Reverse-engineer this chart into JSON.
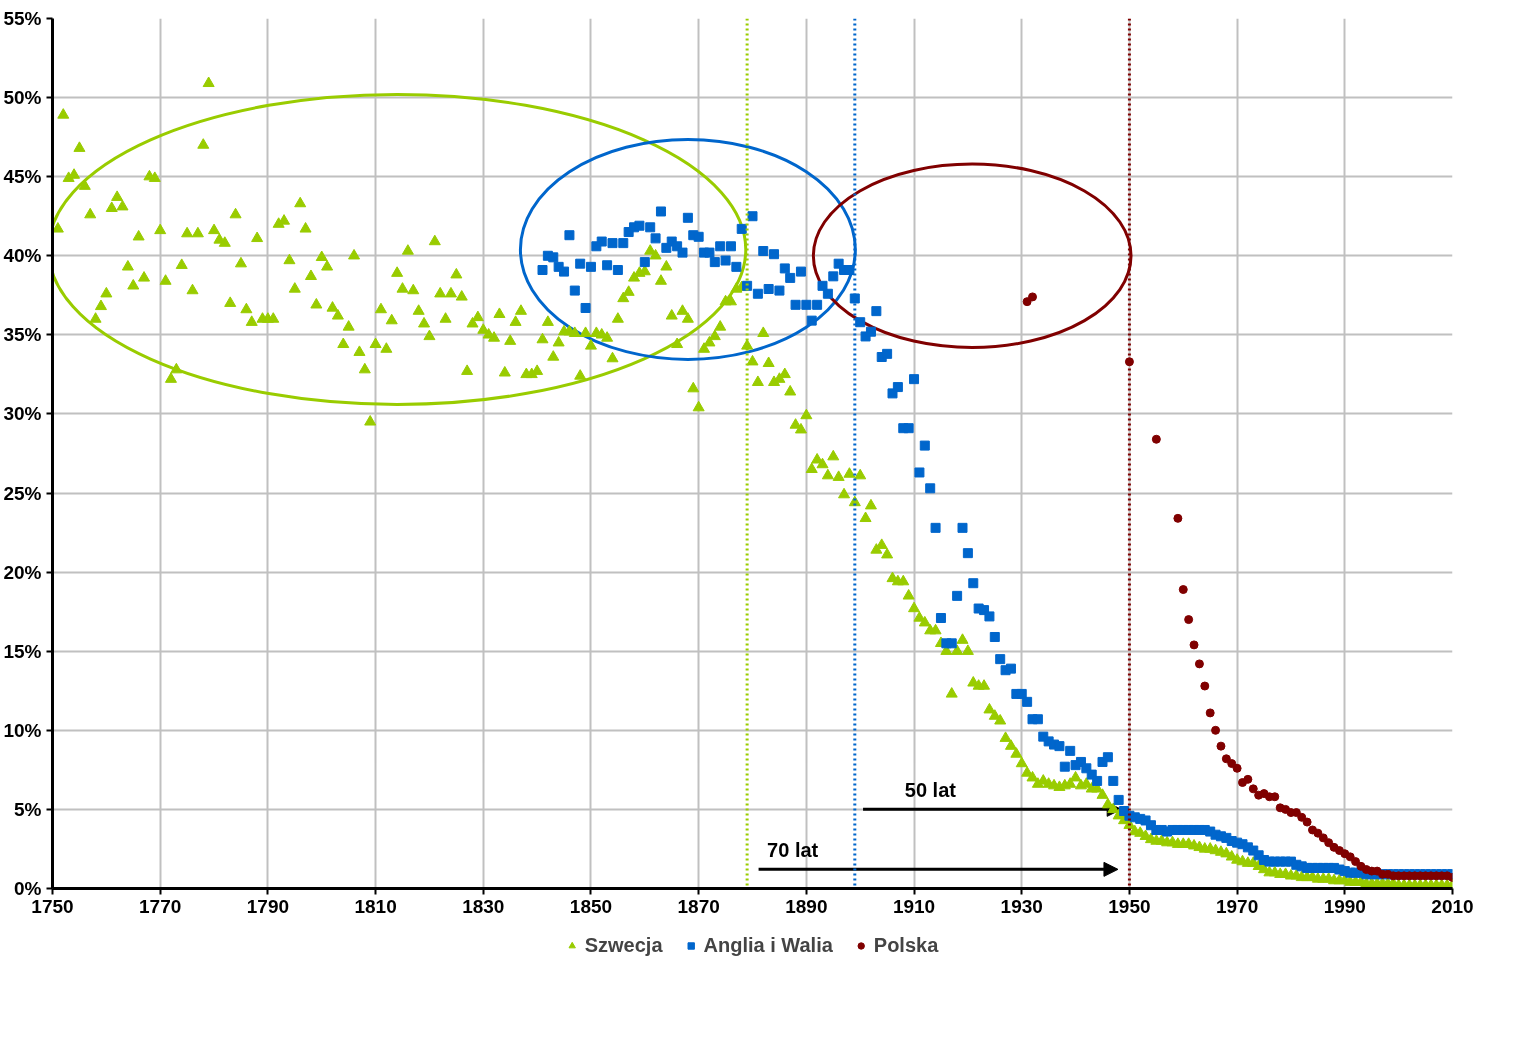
{
  "chart_data": {
    "type": "scatter",
    "xlim": [
      1750,
      2010
    ],
    "ylim": [
      0,
      55
    ],
    "xticks": [
      1750,
      1770,
      1790,
      1810,
      1830,
      1850,
      1870,
      1890,
      1910,
      1930,
      1950,
      1970,
      1990,
      2010
    ],
    "yticks": [
      {
        "value": 0,
        "label": "0%"
      },
      {
        "value": 5,
        "label": "5%"
      },
      {
        "value": 10,
        "label": "10%"
      },
      {
        "value": 15,
        "label": "15%"
      },
      {
        "value": 20,
        "label": "20%"
      },
      {
        "value": 25,
        "label": "25%"
      },
      {
        "value": 30,
        "label": "30%"
      },
      {
        "value": 35,
        "label": "35%"
      },
      {
        "value": 40,
        "label": "40%"
      },
      {
        "value": 45,
        "label": "45%"
      },
      {
        "value": 50,
        "label": "50%"
      },
      {
        "value": 55,
        "label": "55%"
      }
    ],
    "grid": true,
    "legend": "bottom",
    "series": [
      {
        "name": "Szwecja",
        "color": "#99cc00",
        "marker": "triangle",
        "x": [
          1751,
          1752,
          1753,
          1754,
          1755,
          1756,
          1757,
          1758,
          1759,
          1760,
          1761,
          1762,
          1763,
          1764,
          1765,
          1766,
          1767,
          1768,
          1769,
          1770,
          1771,
          1772,
          1773,
          1774,
          1775,
          1776,
          1777,
          1778,
          1779,
          1780,
          1781,
          1782,
          1783,
          1784,
          1785,
          1786,
          1787,
          1788,
          1789,
          1790,
          1791,
          1792,
          1793,
          1794,
          1795,
          1796,
          1797,
          1798,
          1799,
          1800,
          1801,
          1802,
          1803,
          1804,
          1805,
          1806,
          1807,
          1808,
          1809,
          1810,
          1811,
          1812,
          1813,
          1814,
          1815,
          1816,
          1817,
          1818,
          1819,
          1820,
          1821,
          1822,
          1823,
          1824,
          1825,
          1826,
          1827,
          1828,
          1829,
          1830,
          1831,
          1832,
          1833,
          1834,
          1835,
          1836,
          1837,
          1838,
          1839,
          1840,
          1841,
          1842,
          1843,
          1844,
          1845,
          1846,
          1847,
          1848,
          1849,
          1850,
          1851,
          1852,
          1853,
          1854,
          1855,
          1856,
          1857,
          1858,
          1859,
          1860,
          1861,
          1862,
          1863,
          1864,
          1865,
          1866,
          1867,
          1868,
          1869,
          1870,
          1871,
          1872,
          1873,
          1874,
          1875,
          1876,
          1877,
          1878,
          1879,
          1880,
          1881,
          1882,
          1883,
          1884,
          1885,
          1886,
          1887,
          1888,
          1889,
          1890,
          1891,
          1892,
          1893,
          1894,
          1895,
          1896,
          1897,
          1898,
          1899,
          1900,
          1901,
          1902,
          1903,
          1904,
          1905,
          1906,
          1907,
          1908,
          1909,
          1910,
          1911,
          1912,
          1913,
          1914,
          1915,
          1916,
          1917,
          1918,
          1919,
          1920,
          1921,
          1922,
          1923,
          1924,
          1925,
          1926,
          1927,
          1928,
          1929,
          1930,
          1931,
          1932,
          1933,
          1934,
          1935,
          1936,
          1937,
          1938,
          1939,
          1940,
          1941,
          1942,
          1943,
          1944,
          1945,
          1946,
          1947,
          1948,
          1949,
          1950,
          1951,
          1952,
          1953,
          1954,
          1955,
          1956,
          1957,
          1958,
          1959,
          1960,
          1961,
          1962,
          1963,
          1964,
          1965,
          1966,
          1967,
          1968,
          1969,
          1970,
          1971,
          1972,
          1973,
          1974,
          1975,
          1976,
          1977,
          1978,
          1979,
          1980,
          1981,
          1982,
          1983,
          1984,
          1985,
          1986,
          1987,
          1988,
          1989,
          1990,
          1991,
          1992,
          1993,
          1994,
          1995,
          1996,
          1997,
          1998,
          1999,
          2000,
          2001,
          2002,
          2003,
          2004,
          2005,
          2006,
          2007,
          2008,
          2009,
          2010
        ],
        "values": [
          41.7,
          48.9,
          44.9,
          45.1,
          46.8,
          44.4,
          42.6,
          36.0,
          36.8,
          37.6,
          43.0,
          43.7,
          43.1,
          39.3,
          38.1,
          41.2,
          38.6,
          45.0,
          44.9,
          41.6,
          38.4,
          32.2,
          32.8,
          39.4,
          41.4,
          37.8,
          41.4,
          47.0,
          50.9,
          41.6,
          41.0,
          40.8,
          37.0,
          42.6,
          39.5,
          36.6,
          35.8,
          41.1,
          36.0,
          36.0,
          36.0,
          42.0,
          42.2,
          39.7,
          37.9,
          43.3,
          41.7,
          38.7,
          36.9,
          39.9,
          39.3,
          36.7,
          36.2,
          34.4,
          35.5,
          40.0,
          33.9,
          32.8,
          29.5,
          34.4,
          36.6,
          34.1,
          35.9,
          38.9,
          37.9,
          40.3,
          37.8,
          36.5,
          35.7,
          34.9,
          40.9,
          37.6,
          36.0,
          37.6,
          38.8,
          37.4,
          32.7,
          35.7,
          36.1,
          35.3,
          35.0,
          34.8,
          36.3,
          32.6,
          34.6,
          35.8,
          36.5,
          32.5,
          32.5,
          32.7,
          34.7,
          35.8,
          33.6,
          34.5,
          35.2,
          35.2,
          35.1,
          32.4,
          35.1,
          34.3,
          35.1,
          35.0,
          34.8,
          33.5,
          36.0,
          37.3,
          37.7,
          38.6,
          38.9,
          39.0,
          40.3,
          40.0,
          38.4,
          39.3,
          36.2,
          34.4,
          36.5,
          36.0,
          31.6,
          30.4,
          34.1,
          34.5,
          34.9,
          35.5,
          37.1,
          37.1,
          37.9,
          38.0,
          34.3,
          33.3,
          32.0,
          35.1,
          33.2,
          32.0,
          32.2,
          32.5,
          31.4,
          29.3,
          29.0,
          29.9,
          26.5,
          27.1,
          26.8,
          26.1,
          27.3,
          26.0,
          24.9,
          26.2,
          24.4,
          26.1,
          23.4,
          24.2,
          21.4,
          21.7,
          21.1,
          19.6,
          19.4,
          19.4,
          18.5,
          17.7,
          17.1,
          16.8,
          16.3,
          16.3,
          15.5,
          15.0,
          12.3,
          15.0,
          15.7,
          15.0,
          13.0,
          12.8,
          12.8,
          11.3,
          10.9,
          10.6,
          9.5,
          9.0,
          8.5,
          7.9,
          7.3,
          7.0,
          6.6,
          6.8,
          6.6,
          6.5,
          6.4,
          6.5,
          6.6,
          7.0,
          6.5,
          6.6,
          6.3,
          6.3,
          5.9,
          5.3,
          5.0,
          4.6,
          4.3,
          4.0,
          3.6,
          3.5,
          3.3,
          3.1,
          3.0,
          3.0,
          2.9,
          2.9,
          2.8,
          2.8,
          2.8,
          2.7,
          2.6,
          2.5,
          2.5,
          2.4,
          2.3,
          2.2,
          2.0,
          1.8,
          1.7,
          1.6,
          1.6,
          1.4,
          1.2,
          1.0,
          1.0,
          0.9,
          0.9,
          0.8,
          0.8,
          0.7,
          0.7,
          0.7,
          0.6,
          0.6,
          0.6,
          0.5,
          0.5,
          0.5,
          0.4,
          0.4,
          0.4,
          0.3,
          0.3,
          0.3,
          0.3,
          0.3,
          0.3,
          0.2,
          0.2,
          0.2,
          0.2,
          0.2,
          0.2,
          0.2,
          0.2,
          0.2,
          0.2,
          0.2
        ]
      },
      {
        "name": "Anglia i Walia",
        "color": "#0066cc",
        "marker": "square",
        "x": [
          1841,
          1842,
          1843,
          1844,
          1845,
          1846,
          1847,
          1848,
          1849,
          1850,
          1851,
          1852,
          1853,
          1854,
          1855,
          1856,
          1857,
          1858,
          1859,
          1860,
          1861,
          1862,
          1863,
          1864,
          1865,
          1866,
          1867,
          1868,
          1869,
          1870,
          1871,
          1872,
          1873,
          1874,
          1875,
          1876,
          1877,
          1878,
          1879,
          1880,
          1881,
          1882,
          1883,
          1884,
          1885,
          1886,
          1887,
          1888,
          1889,
          1890,
          1891,
          1892,
          1893,
          1894,
          1895,
          1896,
          1897,
          1898,
          1899,
          1900,
          1901,
          1902,
          1903,
          1904,
          1905,
          1906,
          1907,
          1908,
          1909,
          1910,
          1911,
          1912,
          1913,
          1914,
          1915,
          1916,
          1917,
          1918,
          1919,
          1920,
          1921,
          1922,
          1923,
          1924,
          1925,
          1926,
          1927,
          1928,
          1929,
          1930,
          1931,
          1932,
          1933,
          1934,
          1935,
          1936,
          1937,
          1938,
          1939,
          1940,
          1941,
          1942,
          1943,
          1944,
          1945,
          1946,
          1947,
          1948,
          1949,
          1950,
          1951,
          1952,
          1953,
          1954,
          1955,
          1956,
          1957,
          1958,
          1959,
          1960,
          1961,
          1962,
          1963,
          1964,
          1965,
          1966,
          1967,
          1968,
          1969,
          1970,
          1971,
          1972,
          1973,
          1974,
          1975,
          1976,
          1977,
          1978,
          1979,
          1980,
          1981,
          1982,
          1983,
          1984,
          1985,
          1986,
          1987,
          1988,
          1989,
          1990,
          1991,
          1992,
          1993,
          1994,
          1995,
          1996,
          1997,
          1998,
          1999,
          2000,
          2001,
          2002,
          2003,
          2004,
          2005,
          2006,
          2007,
          2008,
          2009,
          2010
        ],
        "values": [
          39.1,
          40.0,
          39.9,
          39.3,
          39.0,
          41.3,
          37.8,
          39.5,
          36.7,
          39.3,
          40.6,
          40.9,
          39.4,
          40.8,
          39.1,
          40.8,
          41.5,
          41.8,
          41.9,
          39.6,
          41.8,
          41.1,
          42.8,
          40.5,
          40.9,
          40.6,
          40.2,
          42.4,
          41.3,
          41.2,
          40.2,
          40.2,
          39.6,
          40.6,
          39.7,
          40.6,
          39.3,
          41.7,
          38.1,
          42.5,
          37.6,
          40.3,
          37.9,
          40.1,
          37.8,
          39.2,
          38.6,
          36.9,
          39.0,
          36.9,
          35.9,
          36.9,
          38.1,
          37.6,
          38.7,
          39.5,
          39.1,
          39.1,
          37.3,
          35.8,
          34.9,
          35.2,
          36.5,
          33.6,
          33.8,
          31.3,
          31.7,
          29.1,
          29.1,
          32.2,
          26.3,
          28.0,
          25.3,
          22.8,
          17.1,
          15.5,
          15.5,
          18.5,
          22.8,
          21.2,
          19.3,
          17.7,
          17.6,
          17.2,
          15.9,
          14.5,
          13.8,
          13.9,
          12.3,
          12.3,
          11.8,
          10.7,
          10.7,
          9.6,
          9.3,
          9.1,
          9.0,
          7.7,
          8.7,
          7.8,
          8.0,
          7.6,
          7.2,
          6.8,
          8.0,
          8.3,
          6.8,
          5.6,
          4.9,
          4.6,
          4.5,
          4.4,
          4.3,
          4.0,
          3.7,
          3.7,
          3.6,
          3.7,
          3.7,
          3.7,
          3.7,
          3.7,
          3.7,
          3.7,
          3.6,
          3.4,
          3.3,
          3.2,
          3.0,
          2.9,
          2.8,
          2.6,
          2.4,
          2.1,
          1.8,
          1.7,
          1.7,
          1.7,
          1.7,
          1.7,
          1.5,
          1.4,
          1.3,
          1.3,
          1.3,
          1.3,
          1.3,
          1.3,
          1.2,
          1.1,
          1.0,
          1.0,
          1.0,
          0.9,
          0.9,
          0.9,
          0.9,
          0.9,
          0.9,
          0.9,
          0.9,
          0.9,
          0.9,
          0.9,
          0.9,
          0.9,
          0.9,
          0.9,
          0.9,
          0.9
        ]
      },
      {
        "name": "Polska",
        "color": "#800000",
        "marker": "circle",
        "x": [
          1931,
          1932,
          1950,
          1955,
          1959,
          1960,
          1961,
          1962,
          1963,
          1964,
          1965,
          1966,
          1967,
          1968,
          1969,
          1970,
          1971,
          1972,
          1973,
          1974,
          1975,
          1976,
          1977,
          1978,
          1979,
          1980,
          1981,
          1982,
          1983,
          1984,
          1985,
          1986,
          1987,
          1988,
          1989,
          1990,
          1991,
          1992,
          1993,
          1994,
          1995,
          1996,
          1997,
          1998,
          1999,
          2000,
          2001,
          2002,
          2003,
          2004,
          2005,
          2006,
          2007,
          2008,
          2009,
          2010
        ],
        "values": [
          37.1,
          37.4,
          33.3,
          28.4,
          23.4,
          18.9,
          17.0,
          15.4,
          14.2,
          12.8,
          11.1,
          10.0,
          9.0,
          8.2,
          7.9,
          7.6,
          6.7,
          6.9,
          6.3,
          5.9,
          6.0,
          5.8,
          5.8,
          5.1,
          5.0,
          4.8,
          4.8,
          4.5,
          4.2,
          3.7,
          3.5,
          3.2,
          2.9,
          2.6,
          2.4,
          2.2,
          2.0,
          1.7,
          1.4,
          1.2,
          1.1,
          1.1,
          0.9,
          0.9,
          0.8,
          0.8,
          0.8,
          0.8,
          0.8,
          0.8,
          0.8,
          0.8,
          0.8,
          0.8,
          0.8,
          0.7
        ]
      }
    ],
    "ref_lines": [
      {
        "axis": "x",
        "value": 1879,
        "label": null,
        "color": "#99cc00",
        "line_style": "dotted"
      },
      {
        "axis": "x",
        "value": 1899,
        "label": null,
        "color": "#0066cc",
        "line_style": "dotted"
      },
      {
        "axis": "x",
        "value": 1950,
        "label": null,
        "color": "#800000",
        "line_style": "dotted"
      }
    ],
    "annotations": [
      "50 lat",
      "70 lat"
    ]
  }
}
